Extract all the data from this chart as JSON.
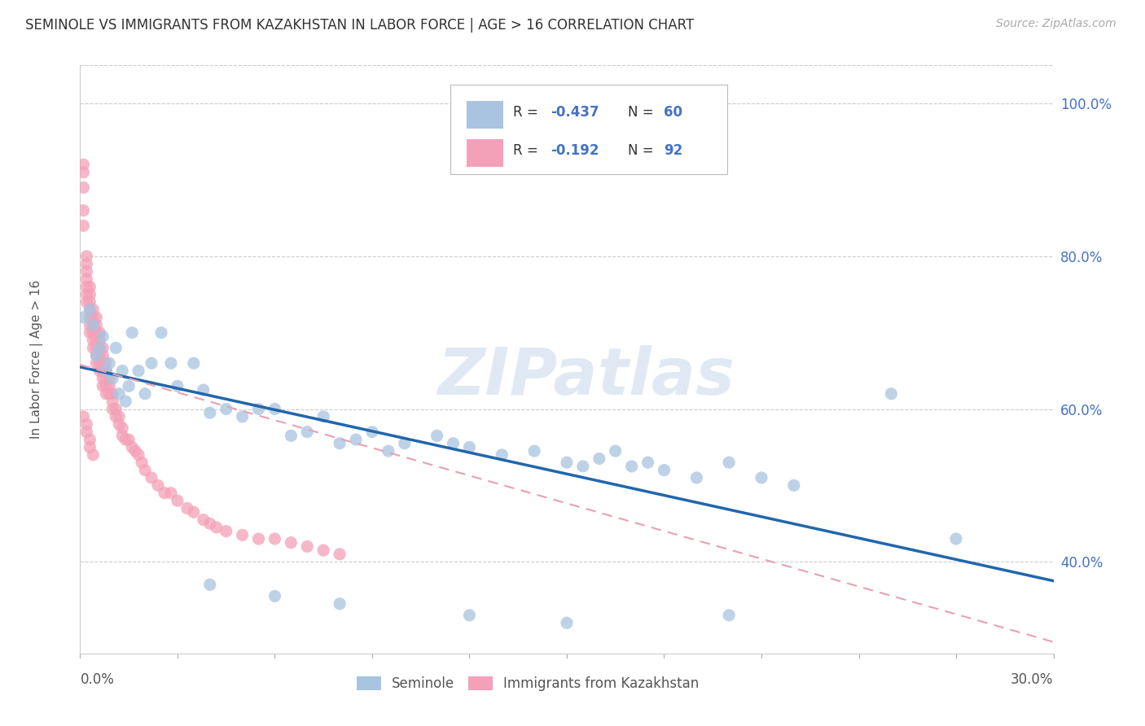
{
  "title": "SEMINOLE VS IMMIGRANTS FROM KAZAKHSTAN IN LABOR FORCE | AGE > 16 CORRELATION CHART",
  "source": "Source: ZipAtlas.com",
  "ylabel": "In Labor Force | Age > 16",
  "legend1_R": "-0.437",
  "legend1_N": "60",
  "legend2_R": "-0.192",
  "legend2_N": "92",
  "seminole_color": "#a8c4e0",
  "kaz_color": "#f4a0b8",
  "trendline_seminole_color": "#2166ac",
  "trendline_kaz_color": "#e8a0b0",
  "watermark": "ZIPatlas",
  "xlim": [
    0.0,
    0.3
  ],
  "ylim": [
    0.28,
    1.05
  ],
  "trendline_sem_x0": 0.0,
  "trendline_sem_y0": 0.655,
  "trendline_sem_x1": 0.3,
  "trendline_sem_y1": 0.375,
  "trendline_kaz_x0": 0.0,
  "trendline_kaz_y0": 0.658,
  "trendline_kaz_x1": 0.3,
  "trendline_kaz_y1": 0.295,
  "seminole_x": [
    0.001,
    0.003,
    0.004,
    0.005,
    0.006,
    0.007,
    0.008,
    0.009,
    0.01,
    0.011,
    0.012,
    0.013,
    0.014,
    0.015,
    0.016,
    0.018,
    0.02,
    0.022,
    0.025,
    0.028,
    0.03,
    0.035,
    0.038,
    0.04,
    0.045,
    0.05,
    0.055,
    0.06,
    0.065,
    0.07,
    0.075,
    0.08,
    0.085,
    0.09,
    0.095,
    0.1,
    0.11,
    0.115,
    0.12,
    0.13,
    0.14,
    0.15,
    0.155,
    0.16,
    0.165,
    0.17,
    0.175,
    0.18,
    0.19,
    0.2,
    0.21,
    0.22,
    0.25,
    0.27,
    0.04,
    0.06,
    0.08,
    0.12,
    0.15,
    0.2
  ],
  "seminole_y": [
    0.72,
    0.73,
    0.71,
    0.67,
    0.68,
    0.695,
    0.65,
    0.66,
    0.64,
    0.68,
    0.62,
    0.65,
    0.61,
    0.63,
    0.7,
    0.65,
    0.62,
    0.66,
    0.7,
    0.66,
    0.63,
    0.66,
    0.625,
    0.595,
    0.6,
    0.59,
    0.6,
    0.6,
    0.565,
    0.57,
    0.59,
    0.555,
    0.56,
    0.57,
    0.545,
    0.555,
    0.565,
    0.555,
    0.55,
    0.54,
    0.545,
    0.53,
    0.525,
    0.535,
    0.545,
    0.525,
    0.53,
    0.52,
    0.51,
    0.53,
    0.51,
    0.5,
    0.62,
    0.43,
    0.37,
    0.355,
    0.345,
    0.33,
    0.32,
    0.33
  ],
  "kaz_x": [
    0.001,
    0.001,
    0.001,
    0.001,
    0.001,
    0.002,
    0.002,
    0.002,
    0.002,
    0.002,
    0.002,
    0.002,
    0.003,
    0.003,
    0.003,
    0.003,
    0.003,
    0.003,
    0.003,
    0.004,
    0.004,
    0.004,
    0.004,
    0.004,
    0.004,
    0.005,
    0.005,
    0.005,
    0.005,
    0.005,
    0.005,
    0.005,
    0.006,
    0.006,
    0.006,
    0.006,
    0.006,
    0.006,
    0.007,
    0.007,
    0.007,
    0.007,
    0.007,
    0.007,
    0.008,
    0.008,
    0.008,
    0.008,
    0.008,
    0.009,
    0.009,
    0.009,
    0.01,
    0.01,
    0.01,
    0.011,
    0.011,
    0.012,
    0.012,
    0.013,
    0.013,
    0.014,
    0.015,
    0.016,
    0.017,
    0.018,
    0.019,
    0.02,
    0.022,
    0.024,
    0.026,
    0.028,
    0.03,
    0.033,
    0.035,
    0.038,
    0.04,
    0.042,
    0.045,
    0.05,
    0.055,
    0.06,
    0.065,
    0.07,
    0.075,
    0.08,
    0.001,
    0.002,
    0.002,
    0.003,
    0.003,
    0.004
  ],
  "kaz_y": [
    0.92,
    0.91,
    0.89,
    0.86,
    0.84,
    0.8,
    0.79,
    0.78,
    0.77,
    0.76,
    0.75,
    0.74,
    0.76,
    0.75,
    0.74,
    0.73,
    0.72,
    0.71,
    0.7,
    0.73,
    0.72,
    0.71,
    0.7,
    0.69,
    0.68,
    0.72,
    0.71,
    0.7,
    0.69,
    0.68,
    0.67,
    0.66,
    0.7,
    0.69,
    0.68,
    0.67,
    0.66,
    0.65,
    0.68,
    0.67,
    0.66,
    0.65,
    0.64,
    0.63,
    0.66,
    0.65,
    0.64,
    0.63,
    0.62,
    0.64,
    0.63,
    0.62,
    0.62,
    0.61,
    0.6,
    0.6,
    0.59,
    0.59,
    0.58,
    0.575,
    0.565,
    0.56,
    0.56,
    0.55,
    0.545,
    0.54,
    0.53,
    0.52,
    0.51,
    0.5,
    0.49,
    0.49,
    0.48,
    0.47,
    0.465,
    0.455,
    0.45,
    0.445,
    0.44,
    0.435,
    0.43,
    0.43,
    0.425,
    0.42,
    0.415,
    0.41,
    0.59,
    0.58,
    0.57,
    0.56,
    0.55,
    0.54
  ]
}
